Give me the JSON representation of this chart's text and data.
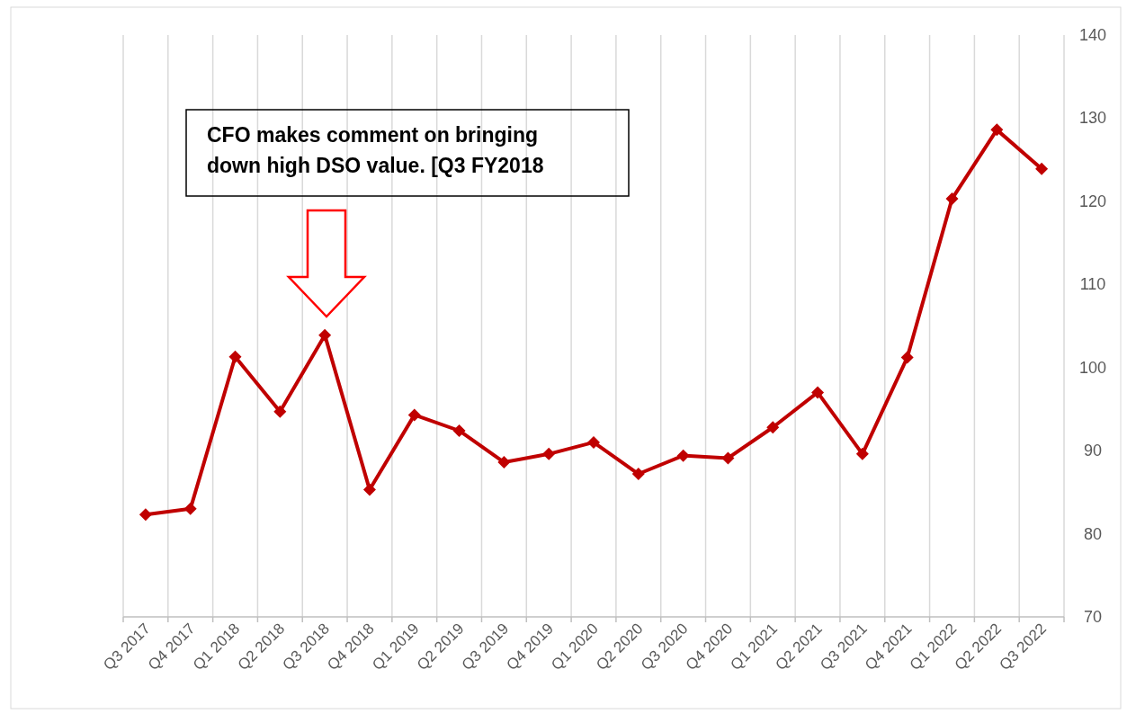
{
  "chart_data": {
    "type": "line",
    "categories": [
      "Q3 2017",
      "Q4 2017",
      "Q1 2018",
      "Q2 2018",
      "Q3 2018",
      "Q4 2018",
      "Q1 2019",
      "Q2 2019",
      "Q3 2019",
      "Q4 2019",
      "Q1 2020",
      "Q2 2020",
      "Q3 2020",
      "Q4 2020",
      "Q1 2021",
      "Q2 2021",
      "Q3 2021",
      "Q4 2021",
      "Q1 2022",
      "Q2 2022",
      "Q3 2022"
    ],
    "series": [
      {
        "color": "#c00000",
        "values": [
          82.3,
          83.0,
          101.3,
          94.7,
          103.9,
          85.3,
          94.3,
          92.4,
          88.6,
          89.6,
          91.0,
          87.2,
          89.4,
          89.1,
          92.8,
          97.0,
          89.6,
          101.2,
          120.3,
          128.6,
          123.9
        ]
      }
    ],
    "ylim": [
      70,
      140
    ],
    "yticks": [
      70,
      80,
      90,
      100,
      110,
      120,
      130,
      140
    ],
    "grid": "x",
    "marker": "diamond",
    "line_style": "solid",
    "annotations": [
      "CFO makes comment on bringing\ndown high DSO value. [Q3 FY2018"
    ]
  }
}
